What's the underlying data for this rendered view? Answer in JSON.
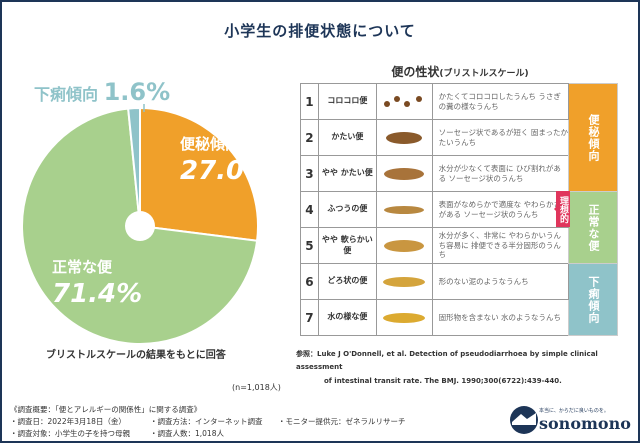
{
  "title": "小学生の排便状態について",
  "chart_data": {
    "type": "pie",
    "title": "小学生の排便状態について",
    "subtitle": "ブリストルスケールの結果をもとに回答",
    "n_label": "(n=1,018人)",
    "slices": [
      {
        "name": "便秘傾向",
        "value": 27.0,
        "label": "27.0%",
        "color": "#f0a02a"
      },
      {
        "name": "正常な便",
        "value": 71.4,
        "label": "71.4%",
        "color": "#a8d08d"
      },
      {
        "name": "下痢傾向",
        "value": 1.6,
        "label": "1.6%",
        "color": "#8fc3c9"
      }
    ]
  },
  "table": {
    "title": "便の性状",
    "title_sub": "(ブリストルスケール)",
    "rows": [
      {
        "num": "1",
        "name": "コロコロ便",
        "desc": "かたくてコロコロしたうんち うさぎの糞の様なうんち"
      },
      {
        "num": "2",
        "name": "かたい便",
        "desc": "ソーセージ状であるが短く 固まったかたいうんち"
      },
      {
        "num": "3",
        "name": "やや かたい便",
        "desc": "水分が少なくて表面に ひび割れがある ソーセージ状のうんち"
      },
      {
        "num": "4",
        "name": "ふつうの便",
        "desc": "表面がなめらかで適度な やわらかさがある ソーセージ状のうんち"
      },
      {
        "num": "5",
        "name": "やや 軟らかい便",
        "desc": "水分が多く、非常に やわらかいうんち容易に 排便できる半分固形のうんち"
      },
      {
        "num": "6",
        "name": "どろ状の便",
        "desc": "形のない泥のようなうんち"
      },
      {
        "num": "7",
        "name": "水の様な便",
        "desc": "固形物を含まない 水のようなうんち"
      }
    ],
    "categories": [
      {
        "label": "便秘傾向",
        "color": "#f0a02a"
      },
      {
        "label": "正常な便",
        "color": "#a8d08d"
      },
      {
        "label": "下痢傾向",
        "color": "#8fc3c9"
      }
    ],
    "ideal": "理想的"
  },
  "reference": {
    "label": "参照：",
    "line1": "Luke J O'Donnell, et al. Detection of pseudodiarrhoea by simple clinical assessment",
    "line2": "of intestinal transit rate. The BMJ. 1990;300(6722):439-440."
  },
  "survey": {
    "heading": "《調査概要：「便とアレルギーの関係性」に関する調査》",
    "date": "・調査日：2022年3月18日（金）",
    "method": "・調査方法：インターネット調査",
    "provider": "・モニター提供元：ゼネラルリサーチ",
    "target": "・調査対象：小学生の子を持つ母親",
    "count": "・調査人数：1,018人"
  },
  "logo": {
    "tagline": "本当に、からだに良いものを。",
    "name": "sonomono"
  }
}
